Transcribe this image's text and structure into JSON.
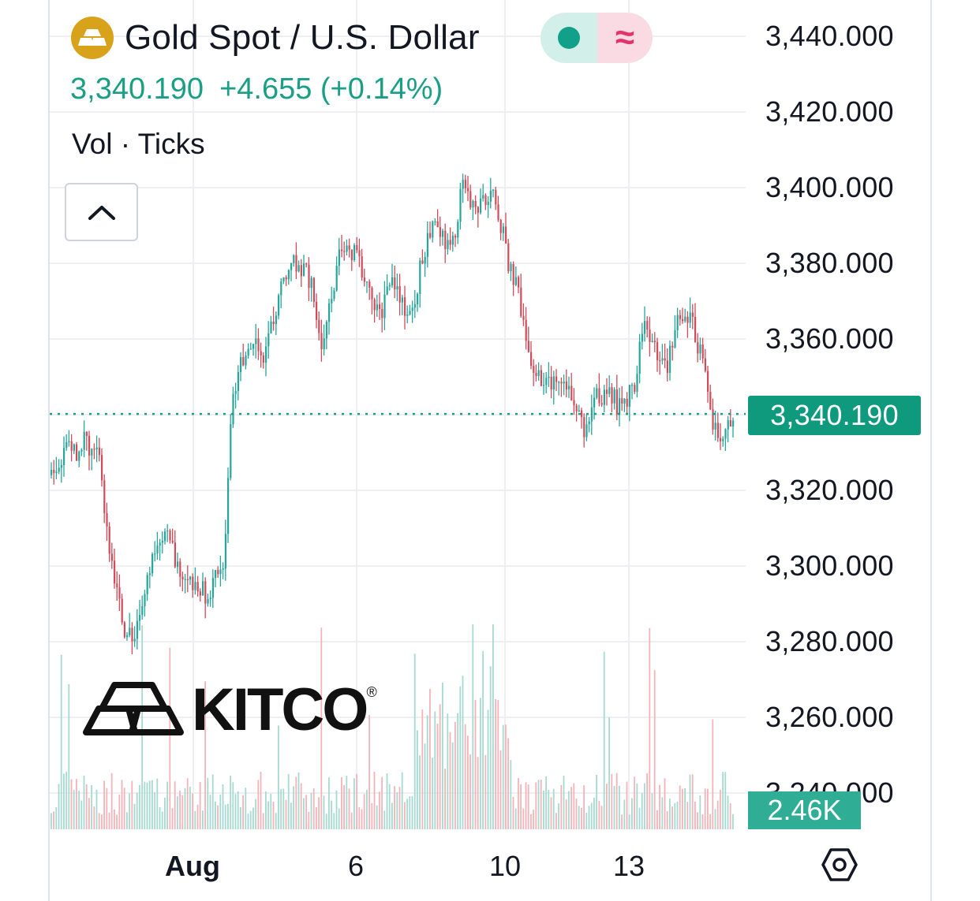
{
  "header": {
    "title": "Gold Spot / U.S. Dollar",
    "price": "3,340.190",
    "change": "+4.655 (+0.14%)",
    "indicator": "Vol · Ticks",
    "market_status_color": "#11a08a",
    "delay_icon": "≈"
  },
  "logo": {
    "text": "KITCO",
    "registered": "®"
  },
  "colors": {
    "up": "#26a69a",
    "down": "#d24b5a",
    "price_line": "#1a9f86",
    "grid": "#eeeff2",
    "vol_up": "#a6dad0",
    "vol_down": "#f3b4b9"
  },
  "chart_data": {
    "type": "candlestick",
    "y_axis": {
      "labels": [
        "3,440.000",
        "3,420.000",
        "3,400.000",
        "3,380.000",
        "3,360.000",
        "3,340.000",
        "3,320.000",
        "3,300.000",
        "3,280.000",
        "3,260.000",
        "3,240.000"
      ],
      "min": 3240,
      "max": 3440
    },
    "x_axis": {
      "labels": [
        {
          "text": "Aug",
          "bold": true
        },
        {
          "text": "6",
          "bold": false
        },
        {
          "text": "10",
          "bold": false
        },
        {
          "text": "13",
          "bold": false
        }
      ]
    },
    "last_price": 3340.19,
    "last_price_label": "3,340.190",
    "volume_label": "2.46K",
    "price_path": [
      [
        0,
        3324
      ],
      [
        1,
        3328
      ],
      [
        2,
        3332
      ],
      [
        3,
        3330
      ],
      [
        4,
        3333
      ],
      [
        5,
        3331
      ],
      [
        6,
        3326
      ],
      [
        7,
        3305
      ],
      [
        8,
        3295
      ],
      [
        9,
        3282
      ],
      [
        10,
        3280
      ],
      [
        11,
        3290
      ],
      [
        12,
        3297
      ],
      [
        13,
        3308
      ],
      [
        14,
        3310
      ],
      [
        15,
        3303
      ],
      [
        16,
        3298
      ],
      [
        17,
        3296
      ],
      [
        18,
        3294
      ],
      [
        19,
        3292
      ],
      [
        20,
        3297
      ],
      [
        21,
        3302
      ],
      [
        22,
        3342
      ],
      [
        23,
        3352
      ],
      [
        24,
        3356
      ],
      [
        25,
        3358
      ],
      [
        26,
        3355
      ],
      [
        27,
        3364
      ],
      [
        28,
        3375
      ],
      [
        29,
        3381
      ],
      [
        30,
        3379
      ],
      [
        31,
        3377
      ],
      [
        32,
        3372
      ],
      [
        33,
        3355
      ],
      [
        34,
        3370
      ],
      [
        35,
        3382
      ],
      [
        36,
        3383
      ],
      [
        37,
        3382
      ],
      [
        38,
        3377
      ],
      [
        39,
        3370
      ],
      [
        40,
        3366
      ],
      [
        41,
        3375
      ],
      [
        42,
        3372
      ],
      [
        43,
        3369
      ],
      [
        44,
        3368
      ],
      [
        45,
        3380
      ],
      [
        46,
        3388
      ],
      [
        47,
        3392
      ],
      [
        48,
        3385
      ],
      [
        49,
        3386
      ],
      [
        50,
        3401
      ],
      [
        51,
        3395
      ],
      [
        52,
        3394
      ],
      [
        53,
        3398
      ],
      [
        54,
        3398
      ],
      [
        55,
        3387
      ],
      [
        56,
        3377
      ],
      [
        57,
        3371
      ],
      [
        58,
        3357
      ],
      [
        59,
        3350
      ],
      [
        60,
        3347
      ],
      [
        61,
        3349
      ],
      [
        62,
        3346
      ],
      [
        63,
        3347
      ],
      [
        64,
        3342
      ],
      [
        65,
        3336
      ],
      [
        66,
        3346
      ],
      [
        67,
        3344
      ],
      [
        68,
        3347
      ],
      [
        69,
        3342
      ],
      [
        70,
        3344
      ],
      [
        71,
        3348
      ],
      [
        72,
        3364
      ],
      [
        73,
        3358
      ],
      [
        74,
        3356
      ],
      [
        75,
        3353
      ],
      [
        76,
        3363
      ],
      [
        77,
        3367
      ],
      [
        78,
        3365
      ],
      [
        79,
        3356
      ],
      [
        80,
        3345
      ],
      [
        81,
        3334
      ],
      [
        82,
        3337
      ],
      [
        83,
        3340
      ]
    ]
  }
}
